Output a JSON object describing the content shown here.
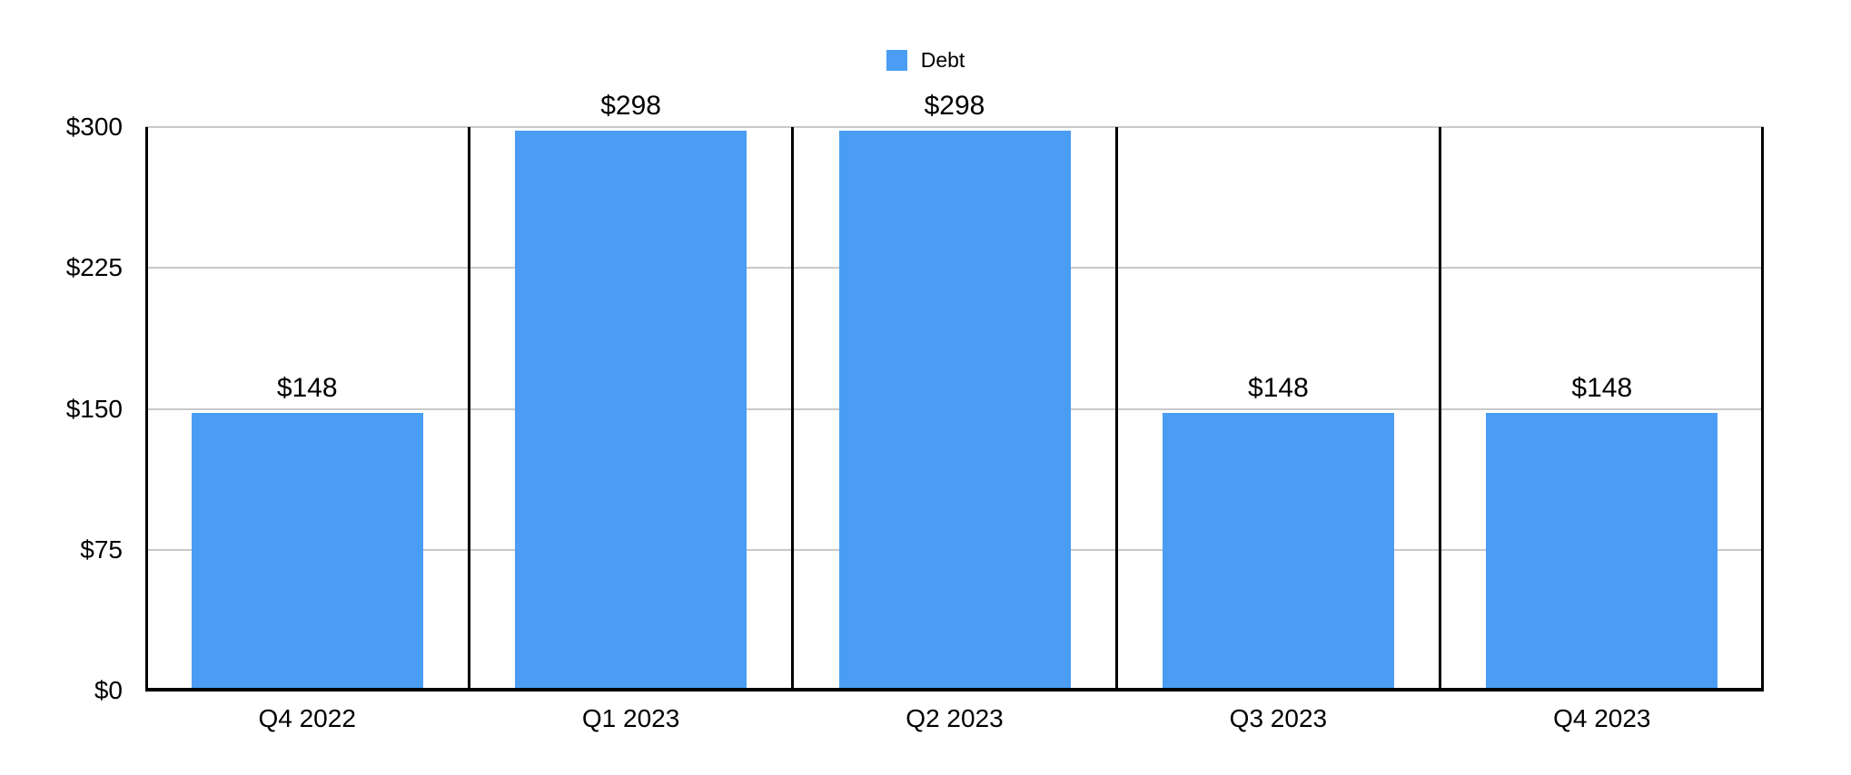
{
  "chart_data": {
    "type": "bar",
    "title": "",
    "categories": [
      "Q4 2022",
      "Q1 2023",
      "Q2 2023",
      "Q3 2023",
      "Q4 2023"
    ],
    "series": [
      {
        "name": "Debt",
        "color": "#4A9DF3",
        "values": [
          148,
          298,
          298,
          148,
          148
        ]
      }
    ],
    "value_labels": [
      "$148",
      "$298",
      "$298",
      "$148",
      "$148"
    ],
    "y_axis": {
      "min": 0,
      "max": 300,
      "ticks": [
        {
          "value": 0,
          "label": "$0"
        },
        {
          "value": 75,
          "label": "$75"
        },
        {
          "value": 150,
          "label": "$150"
        },
        {
          "value": 225,
          "label": "$225"
        },
        {
          "value": 300,
          "label": "$300"
        }
      ]
    },
    "legend": {
      "position": "top-center",
      "items": [
        {
          "label": "Debt",
          "color": "#4A9DF3"
        }
      ]
    },
    "grid": {
      "horizontal": true,
      "vertical_dividers": true
    },
    "colors": {
      "bar": "#4A9DF3",
      "gridline": "#C9C9C9",
      "axis": "#000000",
      "text": "#000000",
      "background": "#FFFFFF"
    }
  }
}
